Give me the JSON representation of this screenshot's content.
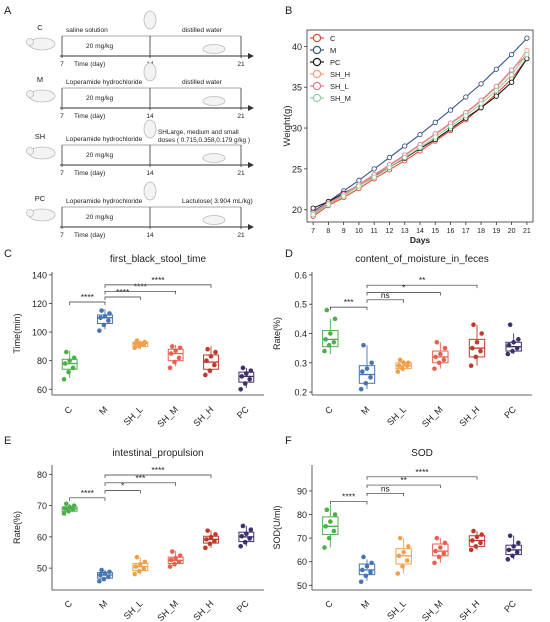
{
  "panel_letters": {
    "A": "A",
    "B": "B",
    "C": "C",
    "D": "D",
    "E": "E",
    "F": "F"
  },
  "schematic": {
    "rows": [
      {
        "group": "C",
        "before": "saline solution",
        "dose": "20 mg/kg",
        "after_l1": "distilled water",
        "after_l2": "",
        "time_label": "Time (day)",
        "day_start": "7",
        "day_mid": "14",
        "day_end": "21"
      },
      {
        "group": "M",
        "before": "Loperamide hydrochloride",
        "dose": "20 mg/kg",
        "after_l1": "distilled water",
        "after_l2": "",
        "time_label": "Time (day)",
        "day_start": "7",
        "day_mid": "14",
        "day_end": "21"
      },
      {
        "group": "SH",
        "before": "Loperamide hydrochloride",
        "dose": "20 mg/kg",
        "after_l1": "SHLarge, medium and small",
        "after_l2": "doses ( 0.715,0.358,0.179 g/kg )",
        "time_label": "Time (day)",
        "day_start": "7",
        "day_mid": "14",
        "day_end": "21"
      },
      {
        "group": "PC",
        "before": "Loperamide hydrochloride",
        "dose": "20 mg/kg",
        "after_l1": "Lactulose( 3.904 mL/kg)",
        "after_l2": "",
        "time_label": "Time (day)",
        "day_start": "7",
        "day_mid": "14",
        "day_end": "21"
      }
    ]
  },
  "colors": {
    "C": "#e64b35",
    "M": "#3c5488",
    "PC": "#1a1a1a",
    "SH_H": "#f39b7f",
    "SH_L": "#e07b91",
    "SH_M": "#91d1a0",
    "box_C": "#4daf4a",
    "box_M": "#4575b4",
    "box_SH_L": "#f0a04b",
    "box_SH_M": "#e8614f",
    "box_SH_H": "#c0392b",
    "box_PC": "#3f2f6b"
  },
  "chart_data": [
    {
      "panel": "B",
      "type": "line",
      "xlabel": "Days",
      "ylabel": "Weight(g)",
      "x": [
        7,
        8,
        9,
        10,
        11,
        12,
        13,
        14,
        15,
        16,
        17,
        18,
        19,
        20,
        21
      ],
      "xlim": [
        6.6,
        21.4
      ],
      "ylim": [
        18.5,
        42
      ],
      "yticks": [
        20,
        25,
        30,
        35,
        40
      ],
      "grid": false,
      "legend_position": "top-left",
      "series": [
        {
          "name": "C",
          "color": "#e64b35",
          "values": [
            19.2,
            20.5,
            21.5,
            22.6,
            23.8,
            24.9,
            26.0,
            27.2,
            28.4,
            29.7,
            31.0,
            32.5,
            34.2,
            36.0,
            38.5
          ]
        },
        {
          "name": "M",
          "color": "#3c5488",
          "values": [
            19.8,
            21.0,
            22.3,
            23.6,
            25.0,
            26.4,
            27.8,
            29.2,
            30.7,
            32.2,
            33.8,
            35.4,
            37.2,
            39.0,
            41.0
          ]
        },
        {
          "name": "PC",
          "color": "#1a1a1a",
          "values": [
            20.2,
            21.0,
            22.0,
            23.0,
            24.1,
            25.2,
            26.3,
            27.5,
            28.6,
            29.9,
            31.2,
            32.5,
            33.9,
            35.6,
            38.5
          ]
        },
        {
          "name": "SH_H",
          "color": "#f39b7f",
          "values": [
            19.5,
            20.7,
            21.8,
            23.0,
            24.2,
            25.4,
            26.6,
            27.9,
            29.2,
            30.5,
            31.8,
            33.3,
            35.0,
            37.0,
            39.5
          ]
        },
        {
          "name": "SH_L",
          "color": "#e07b91",
          "values": [
            19.6,
            20.8,
            21.9,
            23.1,
            24.3,
            25.5,
            26.7,
            28.0,
            29.3,
            30.6,
            31.9,
            33.4,
            35.1,
            37.1,
            39.0
          ]
        },
        {
          "name": "SH_M",
          "color": "#91d1a0",
          "values": [
            19.4,
            20.6,
            21.7,
            22.9,
            24.0,
            25.2,
            26.4,
            27.6,
            28.9,
            30.2,
            31.5,
            33.0,
            34.6,
            36.5,
            39.0
          ]
        }
      ]
    },
    {
      "panel": "C",
      "type": "box",
      "title": "first_black_stool_time",
      "ylabel": "Time(min)",
      "categories": [
        "C",
        "M",
        "SH_L",
        "SH_M",
        "SH_H",
        "PC"
      ],
      "ylim": [
        56,
        142
      ],
      "yticks": [
        60,
        80,
        100,
        120,
        140
      ],
      "boxes": [
        {
          "min": 68,
          "q1": 74,
          "median": 78,
          "q3": 81,
          "max": 87,
          "points": [
            67,
            72,
            75,
            78,
            80,
            82,
            86
          ]
        },
        {
          "min": 102,
          "q1": 106,
          "median": 110,
          "q3": 112,
          "max": 116,
          "points": [
            101,
            105,
            108,
            110,
            111,
            113,
            115
          ]
        },
        {
          "min": 88,
          "q1": 90,
          "median": 92,
          "q3": 93,
          "max": 94,
          "points": [
            89,
            90,
            91,
            92,
            92,
            93,
            94
          ]
        },
        {
          "min": 76,
          "q1": 80,
          "median": 85,
          "q3": 88,
          "max": 91,
          "points": [
            75,
            79,
            82,
            85,
            87,
            89,
            90
          ]
        },
        {
          "min": 71,
          "q1": 74,
          "median": 79,
          "q3": 84,
          "max": 90,
          "points": [
            70,
            73,
            77,
            80,
            83,
            86,
            88
          ]
        },
        {
          "min": 61,
          "q1": 65,
          "median": 69,
          "q3": 72,
          "max": 75,
          "points": [
            60,
            64,
            67,
            69,
            71,
            73,
            75
          ]
        }
      ],
      "significance": [
        {
          "from": 0,
          "to": 1,
          "y": 121,
          "label": "****"
        },
        {
          "from": 1,
          "to": 2,
          "y": 124.5,
          "label": "****"
        },
        {
          "from": 1,
          "to": 3,
          "y": 128.5,
          "label": "****"
        },
        {
          "from": 1,
          "to": 4,
          "y": 133,
          "label": "****"
        }
      ]
    },
    {
      "panel": "D",
      "type": "box",
      "title": "content_of_moisture_in_feces",
      "ylabel": "Rate(%)",
      "categories": [
        "C",
        "M",
        "SH_L",
        "SH_M",
        "SH_H",
        "PC"
      ],
      "ylim": [
        0.19,
        0.61
      ],
      "yticks": [
        0.2,
        0.3,
        0.4,
        0.5,
        0.6
      ],
      "boxes": [
        {
          "min": 0.33,
          "q1": 0.355,
          "median": 0.38,
          "q3": 0.41,
          "max": 0.45,
          "points": [
            0.34,
            0.36,
            0.37,
            0.38,
            0.4,
            0.45,
            0.48
          ]
        },
        {
          "min": 0.21,
          "q1": 0.23,
          "median": 0.26,
          "q3": 0.29,
          "max": 0.36,
          "points": [
            0.21,
            0.23,
            0.25,
            0.27,
            0.28,
            0.3,
            0.36
          ]
        },
        {
          "min": 0.27,
          "q1": 0.28,
          "median": 0.29,
          "q3": 0.3,
          "max": 0.31,
          "points": [
            0.27,
            0.28,
            0.29,
            0.29,
            0.3,
            0.3,
            0.31
          ]
        },
        {
          "min": 0.28,
          "q1": 0.3,
          "median": 0.32,
          "q3": 0.34,
          "max": 0.37,
          "points": [
            0.28,
            0.3,
            0.31,
            0.32,
            0.33,
            0.35,
            0.37
          ]
        },
        {
          "min": 0.29,
          "q1": 0.32,
          "median": 0.35,
          "q3": 0.38,
          "max": 0.43,
          "points": [
            0.29,
            0.32,
            0.34,
            0.35,
            0.37,
            0.4,
            0.43
          ]
        },
        {
          "min": 0.33,
          "q1": 0.34,
          "median": 0.355,
          "q3": 0.37,
          "max": 0.4,
          "points": [
            0.33,
            0.34,
            0.35,
            0.36,
            0.37,
            0.38,
            0.43
          ]
        }
      ],
      "significance": [
        {
          "from": 0,
          "to": 1,
          "y": 0.49,
          "label": "***"
        },
        {
          "from": 1,
          "to": 2,
          "y": 0.515,
          "label": "ns"
        },
        {
          "from": 1,
          "to": 3,
          "y": 0.54,
          "label": "*"
        },
        {
          "from": 1,
          "to": 4,
          "y": 0.565,
          "label": "**"
        }
      ]
    },
    {
      "panel": "E",
      "type": "box",
      "title": "intestinal_propulsion",
      "ylabel": "Rate(%)",
      "categories": [
        "C",
        "M",
        "SH_L",
        "SH_M",
        "SH_H",
        "PC"
      ],
      "ylim": [
        43,
        83
      ],
      "yticks": [
        50,
        60,
        70,
        80
      ],
      "boxes": [
        {
          "min": 67.5,
          "q1": 68.2,
          "median": 69,
          "q3": 69.6,
          "max": 70.5,
          "points": [
            67.5,
            68.2,
            68.8,
            69.1,
            69.5,
            70.0,
            70.6
          ]
        },
        {
          "min": 45.8,
          "q1": 46.8,
          "median": 47.8,
          "q3": 48.6,
          "max": 49.5,
          "points": [
            45.8,
            46.5,
            47.2,
            47.8,
            48.3,
            48.8,
            49.4
          ]
        },
        {
          "min": 48,
          "q1": 49.2,
          "median": 50.5,
          "q3": 51.5,
          "max": 53.5,
          "points": [
            48.1,
            49.0,
            49.8,
            50.5,
            51.2,
            52.0,
            53.5
          ]
        },
        {
          "min": 50.5,
          "q1": 51.5,
          "median": 52.5,
          "q3": 53.5,
          "max": 55.5,
          "points": [
            50.5,
            51.3,
            52.0,
            52.6,
            53.2,
            54.0,
            55.3
          ]
        },
        {
          "min": 56.5,
          "q1": 58,
          "median": 59.2,
          "q3": 60.2,
          "max": 62,
          "points": [
            56.5,
            57.8,
            58.6,
            59.2,
            59.9,
            60.8,
            62.0
          ]
        },
        {
          "min": 57,
          "q1": 58.5,
          "median": 60,
          "q3": 61.5,
          "max": 63.5,
          "points": [
            57.0,
            58.3,
            59.5,
            60.2,
            61.0,
            62.3,
            63.5
          ]
        }
      ],
      "significance": [
        {
          "from": 0,
          "to": 1,
          "y": 72.5,
          "label": "****"
        },
        {
          "from": 1,
          "to": 2,
          "y": 74.8,
          "label": "*"
        },
        {
          "from": 1,
          "to": 3,
          "y": 77.3,
          "label": "***"
        },
        {
          "from": 1,
          "to": 4,
          "y": 79.8,
          "label": "****"
        }
      ]
    },
    {
      "panel": "F",
      "type": "box",
      "title": "SOD",
      "ylabel": "SOD(U/ml)",
      "categories": [
        "C",
        "M",
        "SH_L",
        "SH_M",
        "SH_H",
        "PC"
      ],
      "ylim": [
        48,
        101
      ],
      "yticks": [
        50,
        60,
        70,
        80,
        90
      ],
      "boxes": [
        {
          "min": 66,
          "q1": 71.5,
          "median": 75,
          "q3": 79,
          "max": 84,
          "points": [
            66,
            70,
            73,
            75,
            77,
            80,
            82
          ]
        },
        {
          "min": 52,
          "q1": 54.5,
          "median": 56.5,
          "q3": 59,
          "max": 61,
          "points": [
            51.5,
            54,
            55.5,
            56.5,
            58,
            59.5,
            62
          ]
        },
        {
          "min": 55,
          "q1": 59,
          "median": 62.5,
          "q3": 65.5,
          "max": 70,
          "points": [
            55,
            58,
            60.5,
            62.5,
            64,
            66.5,
            70
          ]
        },
        {
          "min": 59.5,
          "q1": 62.5,
          "median": 64.5,
          "q3": 67.5,
          "max": 70,
          "points": [
            59.5,
            62,
            63.5,
            64.5,
            66,
            68,
            70
          ]
        },
        {
          "min": 65,
          "q1": 66.5,
          "median": 69,
          "q3": 71,
          "max": 73,
          "points": [
            65,
            66.5,
            68,
            69,
            70.5,
            71.5,
            73
          ]
        },
        {
          "min": 61,
          "q1": 63,
          "median": 65,
          "q3": 67,
          "max": 71,
          "points": [
            61,
            62.5,
            64,
            65,
            66.5,
            68,
            71
          ]
        }
      ],
      "significance": [
        {
          "from": 0,
          "to": 1,
          "y": 85.5,
          "label": "****"
        },
        {
          "from": 1,
          "to": 2,
          "y": 89,
          "label": "ns"
        },
        {
          "from": 1,
          "to": 3,
          "y": 92.5,
          "label": "**"
        },
        {
          "from": 1,
          "to": 4,
          "y": 96,
          "label": "****"
        }
      ]
    }
  ]
}
